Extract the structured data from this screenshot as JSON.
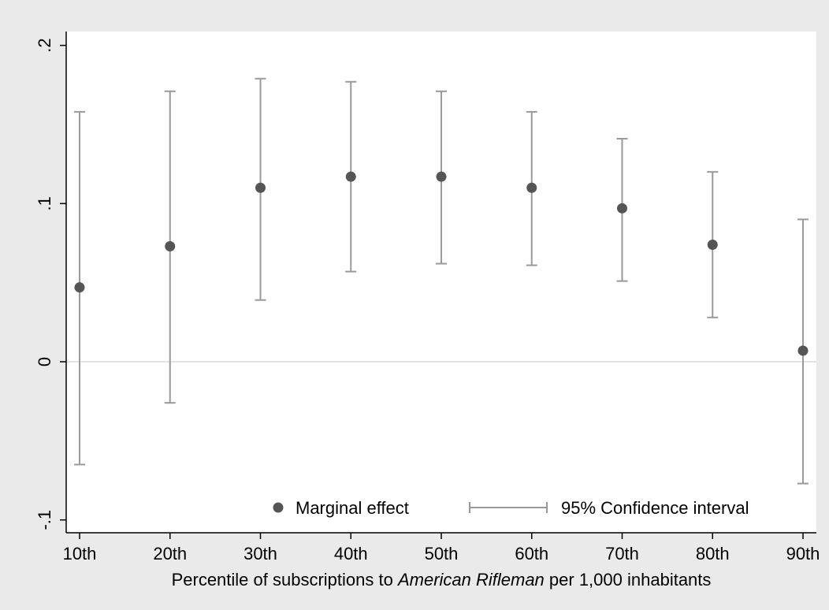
{
  "chart_data": {
    "type": "scatter",
    "title": "",
    "xlabel_parts": [
      {
        "text": "Percentile of subscriptions to ",
        "italic": false
      },
      {
        "text": "American Rifleman",
        "italic": true
      },
      {
        "text": " per 1,000 inhabitants",
        "italic": false
      }
    ],
    "ylabel": "",
    "categories": [
      "10th",
      "20th",
      "30th",
      "40th",
      "50th",
      "60th",
      "70th",
      "80th",
      "90th"
    ],
    "ylim": [
      -0.11,
      0.21
    ],
    "yticks": [
      -0.1,
      0,
      0.1,
      0.2
    ],
    "ytick_labels": [
      "-.1",
      "0",
      ".1",
      ".2"
    ],
    "reference_line_y": 0,
    "grid": false,
    "legend_position": "bottom-right",
    "series": [
      {
        "name": "Marginal effect",
        "kind": "point",
        "color": "#555555",
        "values": [
          0.047,
          0.073,
          0.11,
          0.117,
          0.117,
          0.11,
          0.097,
          0.074,
          0.007
        ]
      },
      {
        "name": "95% Confidence interval",
        "kind": "errorbar",
        "color": "#9a9a9a",
        "lower": [
          -0.065,
          -0.026,
          0.039,
          0.057,
          0.062,
          0.061,
          0.051,
          0.028,
          -0.077
        ],
        "upper": [
          0.158,
          0.171,
          0.179,
          0.177,
          0.171,
          0.158,
          0.141,
          0.12,
          0.09
        ]
      }
    ],
    "colors": {
      "background": "#eaeaea",
      "plot_area": "#ffffff",
      "zero_line": "#dcdcdc",
      "axis": "#000000"
    }
  }
}
